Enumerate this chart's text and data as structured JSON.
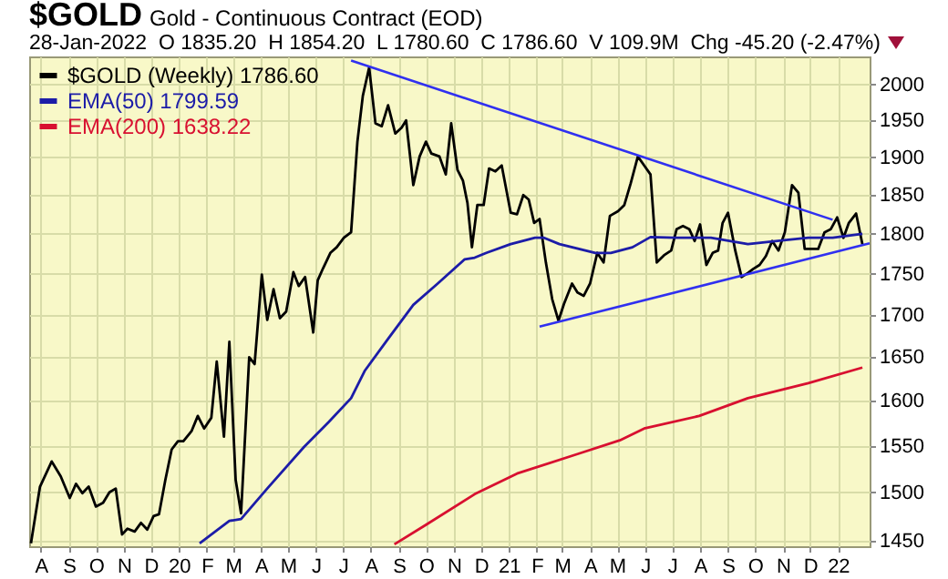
{
  "chart_data": {
    "type": "line",
    "title": "$GOLD",
    "subtitle": "Gold - Continuous Contract (EOD)",
    "annotations": [
      "28-Jan-2022  O 1835.20  H 1854.20  L 1780.60  C 1786.60  V 109.9M  Chg -45.20 (-2.47%)"
    ],
    "log": "y",
    "grid": true,
    "legend": "top left",
    "xlim": [
      "2019-07-19",
      "2022-02-05"
    ],
    "xticks": [
      {
        "value": "2019-08",
        "label": "A"
      },
      {
        "value": "2019-09",
        "label": "S"
      },
      {
        "value": "2019-10",
        "label": "O"
      },
      {
        "value": "2019-11",
        "label": "N"
      },
      {
        "value": "2019-12",
        "label": "D"
      },
      {
        "value": "2020-01",
        "label": "20"
      },
      {
        "value": "2020-02",
        "label": "F"
      },
      {
        "value": "2020-03",
        "label": "M"
      },
      {
        "value": "2020-04",
        "label": "A"
      },
      {
        "value": "2020-05",
        "label": "M"
      },
      {
        "value": "2020-06",
        "label": "J"
      },
      {
        "value": "2020-07",
        "label": "J"
      },
      {
        "value": "2020-08",
        "label": "A"
      },
      {
        "value": "2020-09",
        "label": "S"
      },
      {
        "value": "2020-10",
        "label": "O"
      },
      {
        "value": "2020-11",
        "label": "N"
      },
      {
        "value": "2020-12",
        "label": "D"
      },
      {
        "value": "2021-01",
        "label": "21"
      },
      {
        "value": "2021-02",
        "label": "F"
      },
      {
        "value": "2021-03",
        "label": "M"
      },
      {
        "value": "2021-04",
        "label": "A"
      },
      {
        "value": "2021-05",
        "label": "M"
      },
      {
        "value": "2021-06",
        "label": "J"
      },
      {
        "value": "2021-07",
        "label": "J"
      },
      {
        "value": "2021-08",
        "label": "A"
      },
      {
        "value": "2021-09",
        "label": "S"
      },
      {
        "value": "2021-10",
        "label": "O"
      },
      {
        "value": "2021-11",
        "label": "N"
      },
      {
        "value": "2021-12",
        "label": "D"
      },
      {
        "value": "2022-01",
        "label": "22"
      }
    ],
    "ylim": [
      1444,
      2040
    ],
    "yticks": [
      1450,
      1500,
      1550,
      1600,
      1650,
      1700,
      1750,
      1800,
      1850,
      1900,
      1950,
      2000
    ],
    "series": [
      {
        "name": "$GOLD (Weekly) 1786.60",
        "color": "#000000",
        "x": [
          "2019-07-21",
          "2019-07-31",
          "2019-08-13",
          "2019-08-23",
          "2019-09-02",
          "2019-09-09",
          "2019-09-16",
          "2019-09-23",
          "2019-10-01",
          "2019-10-09",
          "2019-10-16",
          "2019-10-23",
          "2019-10-30",
          "2019-11-05",
          "2019-11-13",
          "2019-11-20",
          "2019-11-27",
          "2019-12-04",
          "2019-12-10",
          "2019-12-17",
          "2019-12-24",
          "2019-12-31",
          "2020-01-06",
          "2020-01-15",
          "2020-01-22",
          "2020-01-29",
          "2020-02-06",
          "2020-02-12",
          "2020-02-20",
          "2020-02-26",
          "2020-03-04",
          "2020-03-10",
          "2020-03-19",
          "2020-03-25",
          "2020-04-02",
          "2020-04-08",
          "2020-04-15",
          "2020-04-22",
          "2020-04-29",
          "2020-05-07",
          "2020-05-13",
          "2020-05-20",
          "2020-05-29",
          "2020-06-03",
          "2020-06-09",
          "2020-06-17",
          "2020-06-24",
          "2020-07-02",
          "2020-07-10",
          "2020-07-17",
          "2020-07-23",
          "2020-07-30",
          "2020-08-06",
          "2020-08-13",
          "2020-08-20",
          "2020-08-28",
          "2020-09-04",
          "2020-09-09",
          "2020-09-17",
          "2020-09-24",
          "2020-10-01",
          "2020-10-07",
          "2020-10-16",
          "2020-10-23",
          "2020-10-29",
          "2020-11-05",
          "2020-11-11",
          "2020-11-16",
          "2020-11-21",
          "2020-11-27",
          "2020-12-04",
          "2020-12-10",
          "2020-12-17",
          "2020-12-24",
          "2021-01-03",
          "2021-01-10",
          "2021-01-17",
          "2021-01-23",
          "2021-01-29",
          "2021-02-04",
          "2021-02-11",
          "2021-02-18",
          "2021-02-25",
          "2021-03-03",
          "2021-03-12",
          "2021-03-18",
          "2021-03-25",
          "2021-04-01",
          "2021-04-09",
          "2021-04-16",
          "2021-04-23",
          "2021-05-02",
          "2021-05-09",
          "2021-05-16",
          "2021-05-24",
          "2021-05-31",
          "2021-06-07",
          "2021-06-14",
          "2021-06-22",
          "2021-06-30",
          "2021-07-06",
          "2021-07-13",
          "2021-07-20",
          "2021-07-26",
          "2021-08-01",
          "2021-08-08",
          "2021-08-15",
          "2021-08-21",
          "2021-08-26",
          "2021-09-01",
          "2021-09-09",
          "2021-09-16",
          "2021-09-23",
          "2021-09-29",
          "2021-10-06",
          "2021-10-13",
          "2021-10-20",
          "2021-10-27",
          "2021-11-03",
          "2021-11-11",
          "2021-11-18",
          "2021-11-25",
          "2021-12-04",
          "2021-12-10",
          "2021-12-17",
          "2021-12-24",
          "2021-12-31",
          "2022-01-07",
          "2022-01-13",
          "2022-01-21",
          "2022-01-28"
        ],
        "values": [
          1447,
          1506,
          1533,
          1517,
          1494,
          1509,
          1499,
          1506,
          1485,
          1489,
          1500,
          1504,
          1456,
          1462,
          1459,
          1468,
          1461,
          1475,
          1477,
          1513,
          1546,
          1555,
          1555,
          1566,
          1583,
          1569,
          1581,
          1645,
          1560,
          1668,
          1513,
          1478,
          1650,
          1642,
          1749,
          1694,
          1731,
          1696,
          1704,
          1752,
          1735,
          1746,
          1679,
          1742,
          1757,
          1776,
          1783,
          1795,
          1802,
          1921,
          1984,
          2024,
          1946,
          1942,
          1971,
          1932,
          1940,
          1950,
          1863,
          1901,
          1921,
          1905,
          1901,
          1877,
          1946,
          1883,
          1869,
          1840,
          1783,
          1837,
          1837,
          1885,
          1881,
          1889,
          1827,
          1825,
          1850,
          1844,
          1814,
          1819,
          1764,
          1719,
          1693,
          1713,
          1738,
          1727,
          1723,
          1738,
          1776,
          1764,
          1823,
          1829,
          1837,
          1865,
          1901,
          1889,
          1877,
          1764,
          1773,
          1779,
          1806,
          1810,
          1806,
          1791,
          1812,
          1761,
          1776,
          1779,
          1814,
          1827,
          1779,
          1746,
          1751,
          1756,
          1761,
          1772,
          1791,
          1779,
          1802,
          1863,
          1853,
          1781,
          1781,
          1781,
          1802,
          1806,
          1821,
          1795,
          1814,
          1826,
          1787
        ]
      },
      {
        "name": "EMA(50) 1799.59",
        "color": "#1c1ca8",
        "x": [
          "2020-01-24",
          "2020-02-26",
          "2020-03-10",
          "2020-04-08",
          "2020-05-19",
          "2020-06-15",
          "2020-07-10",
          "2020-07-25",
          "2020-08-21",
          "2020-09-17",
          "2020-10-14",
          "2020-11-13",
          "2020-11-24",
          "2020-12-07",
          "2021-01-03",
          "2021-01-30",
          "2021-02-09",
          "2021-02-26",
          "2021-04-07",
          "2021-04-24",
          "2021-05-18",
          "2021-06-07",
          "2021-07-04",
          "2021-08-13",
          "2021-09-23",
          "2021-11-02",
          "2021-11-29",
          "2021-12-26",
          "2022-01-28"
        ],
        "values": [
          1447,
          1470,
          1472,
          1504,
          1549,
          1576,
          1603,
          1634,
          1673,
          1712,
          1738,
          1768,
          1770,
          1776,
          1787,
          1795,
          1795,
          1787,
          1776,
          1776,
          1783,
          1796,
          1795,
          1795,
          1787,
          1792,
          1795,
          1795,
          1800
        ]
      },
      {
        "name": "EMA(200) 1638.22",
        "color": "#d81030",
        "x": [
          "2020-08-27",
          "2020-10-01",
          "2020-11-24",
          "2021-01-10",
          "2021-03-18",
          "2021-05-04",
          "2021-05-31",
          "2021-07-31",
          "2021-09-23",
          "2021-11-29",
          "2022-01-28"
        ],
        "values": [
          1446,
          1466,
          1498,
          1520,
          1541,
          1556,
          1569,
          1583,
          1603,
          1620,
          1638
        ]
      },
      {
        "type": "line",
        "color": "#3030f0",
        "x": [
          "2020-07-10",
          "2021-12-26"
        ],
        "values": [
          2034,
          1818
        ]
      },
      {
        "type": "line",
        "color": "#3030f0",
        "x": [
          "2021-02-04",
          "2022-02-05"
        ],
        "values": [
          1686,
          1788
        ]
      }
    ]
  }
}
